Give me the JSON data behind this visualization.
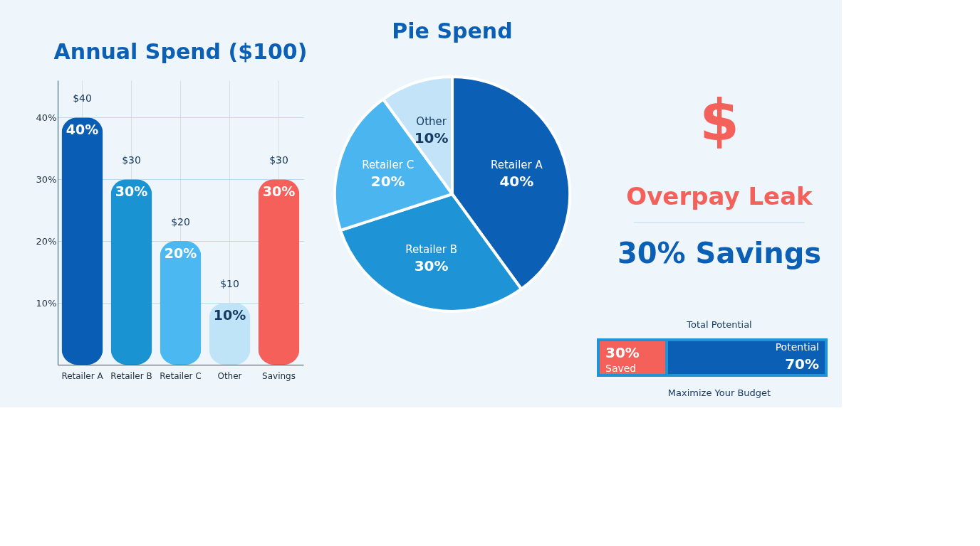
{
  "chart_data": [
    {
      "type": "bar",
      "title": "Annual Spend ($100)",
      "categories": [
        "Retailer A",
        "Retailer B",
        "Retailer C",
        "Other",
        "Savings"
      ],
      "values": [
        40,
        30,
        20,
        10,
        30
      ],
      "colors": [
        "#0a5db4",
        "#1a93d3",
        "#4cb8f2",
        "#bfe3f7",
        "#f6605b"
      ],
      "value_labels": [
        "40%",
        "30%",
        "20%",
        "10%",
        "30%"
      ],
      "annotations": [
        {
          "text": "$40",
          "x": "Retailer A",
          "y": 40
        },
        {
          "text": "$30",
          "x": "Retailer B",
          "y": 30
        },
        {
          "text": "$20",
          "x": "Retailer C",
          "y": 20
        },
        {
          "text": "$10",
          "x": "Other",
          "y": 10
        },
        {
          "text": "$30",
          "x": "Savings",
          "y": 30
        }
      ],
      "ylim": [
        0,
        46
      ],
      "yticks": [
        {
          "value": 10,
          "label": "10%"
        },
        {
          "value": 20,
          "label": "20%"
        },
        {
          "value": 30,
          "label": "30%"
        },
        {
          "value": 40,
          "label": "40%"
        }
      ],
      "grid": true
    },
    {
      "type": "pie",
      "title": "Pie Spend",
      "categories": [
        "Retailer A",
        "Retailer B",
        "Retailer C",
        "Other"
      ],
      "values": [
        40,
        30,
        20,
        10
      ],
      "colors": [
        "#0b5fb5",
        "#1e94d6",
        "#4bb5f0",
        "#c3e4f8"
      ],
      "value_labels": [
        "40%",
        "30%",
        "20%",
        "10%"
      ]
    },
    {
      "type": "other",
      "title": "Overpay Leak",
      "subtitle": "30% Savings",
      "annotations": [
        "$"
      ]
    },
    {
      "type": "bar",
      "orientation": "horizontal",
      "stacked": true,
      "categories": [
        null
      ],
      "xlim": [
        0,
        100
      ],
      "series": [
        {
          "name": "Saved",
          "color": "#f4605a",
          "values": [
            30
          ],
          "value_labels": [
            "30%"
          ]
        },
        {
          "name": "Potential",
          "color": "#0b5fb5",
          "values": [
            70
          ],
          "value_labels": [
            "70%"
          ]
        }
      ],
      "annotations": [
        "Total Potential",
        "Maximize Your Budget"
      ]
    }
  ]
}
